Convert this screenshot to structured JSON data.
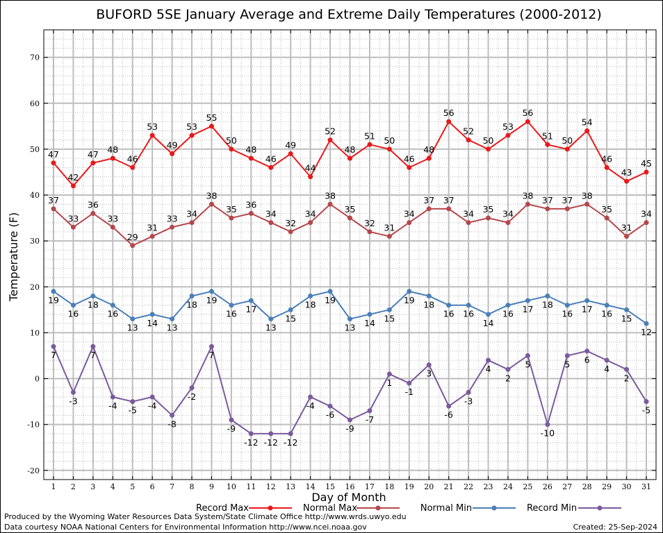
{
  "chart_data": {
    "type": "line",
    "title": "BUFORD 5SE January Average and Extreme Daily Temperatures (2000-2012)",
    "xlabel": "Day of Month",
    "ylabel": "Temperature (F)",
    "categories": [
      1,
      2,
      3,
      4,
      5,
      6,
      7,
      8,
      9,
      10,
      11,
      12,
      13,
      14,
      15,
      16,
      17,
      18,
      19,
      20,
      21,
      22,
      23,
      24,
      25,
      26,
      27,
      28,
      29,
      30,
      31
    ],
    "ylim": [
      -22,
      76
    ],
    "yticks": [
      -20,
      -10,
      0,
      10,
      20,
      30,
      40,
      50,
      60,
      70
    ],
    "grid": true,
    "legend_position": "bottom",
    "series": [
      {
        "name": "Record Max",
        "color": "#e8191b",
        "label_pos": "above",
        "values": [
          47,
          42,
          47,
          48,
          46,
          53,
          49,
          53,
          55,
          50,
          48,
          46,
          49,
          44,
          52,
          48,
          51,
          50,
          46,
          48,
          56,
          52,
          50,
          53,
          56,
          51,
          50,
          54,
          46,
          43,
          45
        ]
      },
      {
        "name": "Normal Max",
        "color": "#b5474b",
        "label_pos": "above",
        "values": [
          37,
          33,
          36,
          33,
          29,
          31,
          33,
          34,
          38,
          35,
          36,
          34,
          32,
          34,
          38,
          35,
          32,
          31,
          34,
          37,
          37,
          34,
          35,
          34,
          38,
          37,
          37,
          38,
          35,
          31,
          34
        ]
      },
      {
        "name": "Normal Min",
        "color": "#4a7fb8",
        "label_pos": "below",
        "values": [
          19,
          16,
          18,
          16,
          13,
          14,
          13,
          18,
          19,
          16,
          17,
          13,
          15,
          18,
          19,
          13,
          14,
          15,
          19,
          18,
          16,
          16,
          14,
          16,
          17,
          18,
          16,
          17,
          16,
          15,
          12
        ]
      },
      {
        "name": "Record Min",
        "color": "#7a5a9b",
        "label_pos": "below",
        "values": [
          7,
          -3,
          7,
          -4,
          -5,
          -4,
          -8,
          -2,
          7,
          -9,
          -12,
          -12,
          -12,
          -4,
          -6,
          -9,
          -7,
          1,
          -1,
          3,
          -6,
          -3,
          4,
          2,
          5,
          -10,
          5,
          6,
          4,
          2,
          -5
        ]
      }
    ]
  },
  "footer": {
    "produced_by": "Produced by the Wyoming Water Resources Data System/State Climate Office http://www.wrds.uwyo.edu",
    "data_courtesy": "Data courtesy NOAA National Centers for Environmental Information http://www.ncei.noaa.gov",
    "created": "Created:  25-Sep-2024"
  }
}
